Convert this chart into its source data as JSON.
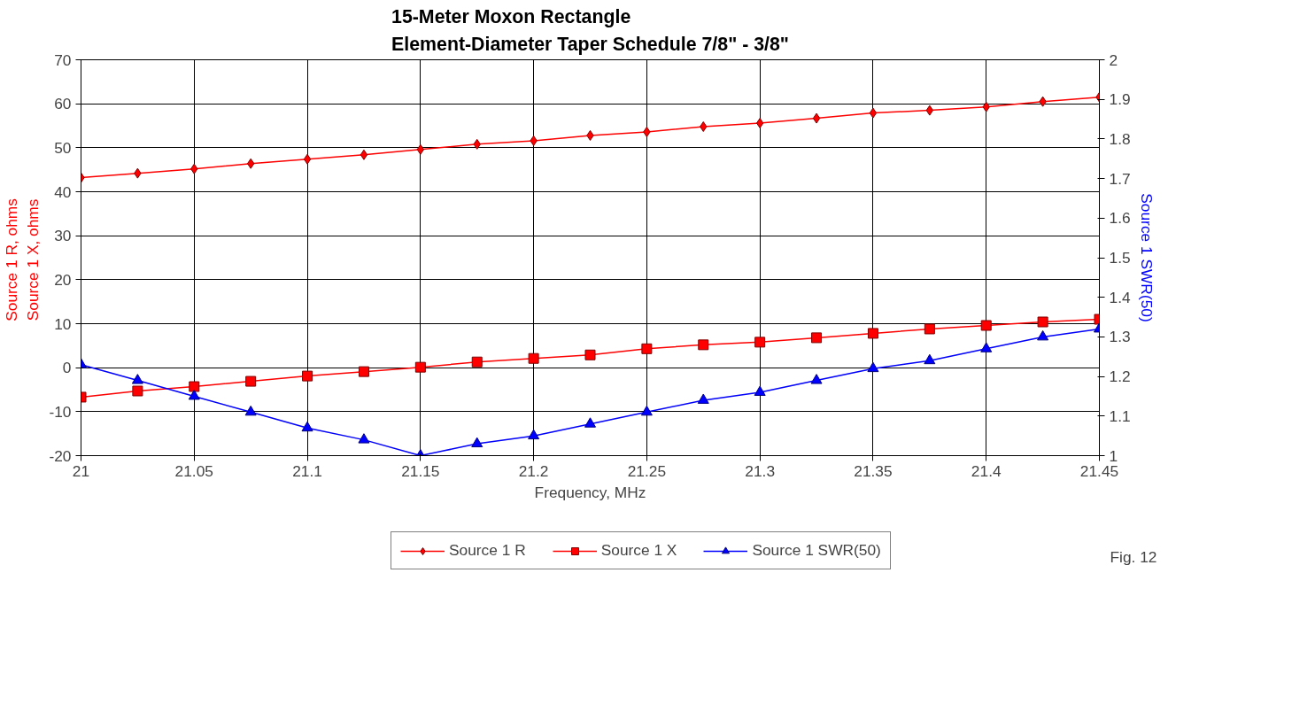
{
  "chart_data": {
    "type": "line",
    "title": "15-Meter Moxon Rectangle\nElement-Diameter Taper Schedule 7/8\" - 3/8\"",
    "xlabel": "Frequency, MHz",
    "ylabel": "Source 1 R,  ohms\nSource 1 X,  ohms",
    "y2label": "Source 1 SWR(50)",
    "x": [
      21,
      21.025,
      21.05,
      21.075,
      21.1,
      21.125,
      21.15,
      21.175,
      21.2,
      21.225,
      21.25,
      21.275,
      21.3,
      21.325,
      21.35,
      21.375,
      21.4,
      21.425,
      21.45
    ],
    "series": [
      {
        "name": "Source 1 R",
        "color": "#ff0000",
        "marker": "diamond",
        "values": [
          43.2,
          44.2,
          45.2,
          46.4,
          47.4,
          48.4,
          49.6,
          50.8,
          51.6,
          52.8,
          53.6,
          54.8,
          55.6,
          56.7,
          57.9,
          58.5,
          59.3,
          60.5,
          61.5
        ]
      },
      {
        "name": "Source 1 X",
        "color": "#ff0000",
        "marker": "square",
        "values": [
          -6.7,
          -5.3,
          -4.3,
          -3.1,
          -1.9,
          -0.9,
          0.1,
          1.3,
          2.1,
          2.9,
          4.3,
          5.2,
          5.8,
          6.8,
          7.8,
          8.8,
          9.6,
          10.4,
          11.0
        ]
      },
      {
        "name": "Source 1 SWR(50)",
        "color": "#0000ff",
        "marker": "triangle",
        "axis": "y2",
        "values": [
          1.23,
          1.19,
          1.15,
          1.11,
          1.07,
          1.04,
          1.0,
          1.03,
          1.05,
          1.08,
          1.11,
          1.14,
          1.16,
          1.19,
          1.22,
          1.24,
          1.27,
          1.3,
          1.32
        ]
      }
    ],
    "xlim": [
      21,
      21.45
    ],
    "xticks": [
      21,
      21.05,
      21.1,
      21.15,
      21.2,
      21.25,
      21.3,
      21.35,
      21.4,
      21.45
    ],
    "ylim": [
      -20,
      70
    ],
    "yticks": [
      -20,
      -10,
      0,
      10,
      20,
      30,
      40,
      50,
      60,
      70
    ],
    "y2lim": [
      1,
      2
    ],
    "y2ticks": [
      1,
      1.1,
      1.2,
      1.3,
      1.4,
      1.5,
      1.6,
      1.7,
      1.8,
      1.9,
      2
    ],
    "grid": true,
    "legend": "bottom",
    "line_style": "solid",
    "annotations": [
      "Fig. 12"
    ]
  }
}
